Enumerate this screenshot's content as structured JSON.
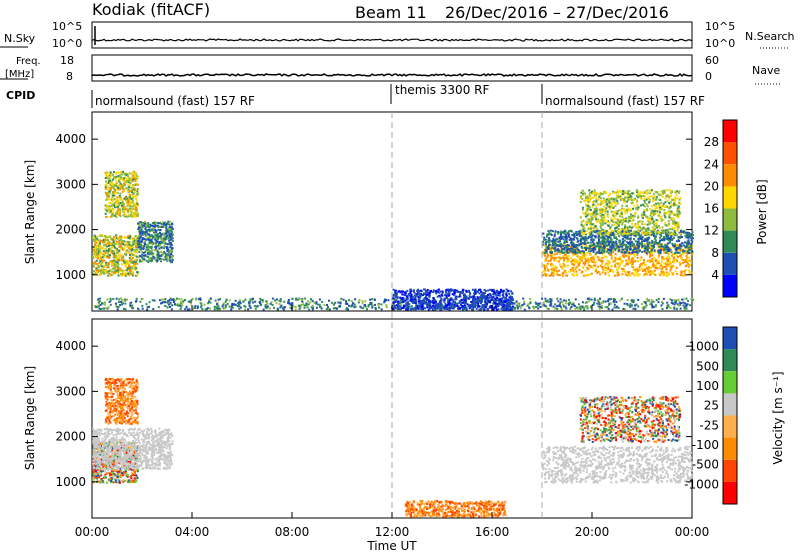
{
  "header": {
    "station": "Kodiak (fitACF)",
    "beam": "Beam 11",
    "date_range": "26/Dec/2016 – 27/Dec/2016"
  },
  "noise_panel": {
    "left_label": "N.Sky",
    "left_ticks": [
      "10^5",
      "10^0"
    ],
    "right_label": "N.Search",
    "right_ticks": [
      "10^5",
      "10^0"
    ]
  },
  "freq_panel": {
    "left_label_top": "Freq.",
    "left_label_bottom": "[MHz]",
    "left_ticks": [
      "18",
      "8"
    ],
    "right_label": "Nave",
    "right_ticks": [
      "60",
      "0"
    ]
  },
  "cpid_panel": {
    "label": "CPID",
    "segments": [
      {
        "text": "normalsound (fast) 157 RF",
        "start_hour": 0
      },
      {
        "text": "themis 3300 RF",
        "start_hour": 12
      },
      {
        "text": "normalsound (fast) 157 RF",
        "start_hour": 18
      }
    ]
  },
  "colors": {
    "power": [
      "#0000ff",
      "#1e4fb4",
      "#2e8b57",
      "#8fbc3f",
      "#ffd700",
      "#ff8c00",
      "#ff5000",
      "#ff0000"
    ],
    "velocity": [
      "#ff0000",
      "#ff4500",
      "#ff8c00",
      "#ffb04d",
      "#c8c8c8",
      "#66cc33",
      "#2e8b57",
      "#1e4fb4"
    ]
  },
  "chart_data": [
    {
      "type": "heatmap",
      "name": "power",
      "ylabel": "Slant Range [km]",
      "xlabel": "Time UT",
      "x_ticks": [
        "00:00",
        "04:00",
        "08:00",
        "12:00",
        "16:00",
        "20:00",
        "00:00"
      ],
      "xlim_hours": [
        0,
        24
      ],
      "ylim": [
        200,
        4600
      ],
      "y_ticks": [
        1000,
        2000,
        3000,
        4000
      ],
      "colorbar_label": "Power [dB]",
      "colorbar_ticks": [
        "4",
        "8",
        "12",
        "16",
        "20",
        "24",
        "28"
      ],
      "colorbar_range": [
        0,
        32
      ],
      "scatter_regions": [
        {
          "t": [
            0.0,
            1.8
          ],
          "r": [
            1000,
            1900
          ],
          "value_range": [
            10,
            22
          ]
        },
        {
          "t": [
            1.8,
            3.2
          ],
          "r": [
            1300,
            2200
          ],
          "value_range": [
            4,
            14
          ]
        },
        {
          "t": [
            0.5,
            1.8
          ],
          "r": [
            2300,
            3300
          ],
          "value_range": [
            10,
            22
          ]
        },
        {
          "t": [
            0.0,
            24.0
          ],
          "r": [
            250,
            500
          ],
          "value_range": [
            4,
            14
          ]
        },
        {
          "t": [
            12.0,
            16.8
          ],
          "r": [
            250,
            700
          ],
          "value_range": [
            2,
            8
          ]
        },
        {
          "t": [
            18.0,
            24.0
          ],
          "r": [
            1000,
            1700
          ],
          "value_range": [
            16,
            24
          ]
        },
        {
          "t": [
            18.0,
            24.0
          ],
          "r": [
            1500,
            2000
          ],
          "value_range": [
            4,
            12
          ]
        },
        {
          "t": [
            19.5,
            23.5
          ],
          "r": [
            1900,
            2900
          ],
          "value_range": [
            10,
            20
          ]
        }
      ]
    },
    {
      "type": "heatmap",
      "name": "velocity",
      "ylabel": "Slant Range [km]",
      "xlabel": "Time UT",
      "x_ticks": [
        "00:00",
        "04:00",
        "08:00",
        "12:00",
        "16:00",
        "20:00",
        "00:00"
      ],
      "xlim_hours": [
        0,
        24
      ],
      "ylim": [
        200,
        4600
      ],
      "y_ticks": [
        1000,
        2000,
        3000,
        4000
      ],
      "colorbar_label": "Velocity [m s⁻¹]",
      "colorbar_ticks": [
        "-1000",
        "-500",
        "-100",
        "-25",
        "25",
        "100",
        "500",
        "1000"
      ],
      "scatter_regions": [
        {
          "t": [
            0.0,
            1.8
          ],
          "r": [
            1000,
            1900
          ],
          "value": "mixed"
        },
        {
          "t": [
            0.0,
            3.2
          ],
          "r": [
            1300,
            2200
          ],
          "value": "ground"
        },
        {
          "t": [
            0.5,
            1.8
          ],
          "r": [
            2300,
            3300
          ],
          "value": "negative"
        },
        {
          "t": [
            12.5,
            16.5
          ],
          "r": [
            250,
            600
          ],
          "value": "negative"
        },
        {
          "t": [
            18.0,
            24.0
          ],
          "r": [
            1000,
            1800
          ],
          "value": "ground"
        },
        {
          "t": [
            19.5,
            23.5
          ],
          "r": [
            1900,
            2900
          ],
          "value": "mixed"
        }
      ]
    }
  ],
  "dividers_hours": [
    12,
    18
  ]
}
